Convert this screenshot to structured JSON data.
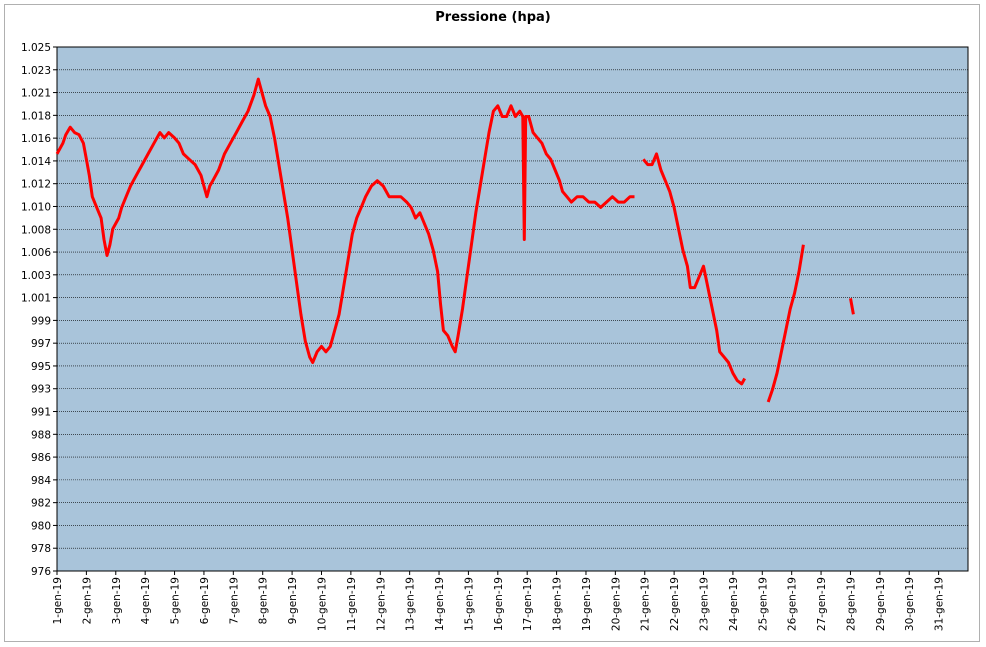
{
  "chart_data": {
    "type": "line",
    "title": "Pressione (hpa)",
    "xlabel": "",
    "ylabel": "",
    "ylim": [
      976,
      1025
    ],
    "xlim_days": [
      1,
      32
    ],
    "y_ticks": [
      "976",
      "978",
      "980",
      "982",
      "984",
      "986",
      "988",
      "991",
      "993",
      "995",
      "997",
      "999",
      "1.001",
      "1.003",
      "1.006",
      "1.008",
      "1.010",
      "1.012",
      "1.014",
      "1.016",
      "1.018",
      "1.021",
      "1.023",
      "1.025"
    ],
    "x_ticks": [
      "1-gen-19",
      "2-gen-19",
      "3-gen-19",
      "4-gen-19",
      "5-gen-19",
      "6-gen-19",
      "7-gen-19",
      "8-gen-19",
      "9-gen-19",
      "10-gen-19",
      "11-gen-19",
      "12-gen-19",
      "13-gen-19",
      "14-gen-19",
      "15-gen-19",
      "16-gen-19",
      "17-gen-19",
      "18-gen-19",
      "19-gen-19",
      "20-gen-19",
      "21-gen-19",
      "22-gen-19",
      "23-gen-19",
      "24-gen-19",
      "25-gen-19",
      "26-gen-19",
      "27-gen-19",
      "28-gen-19",
      "29-gen-19",
      "30-gen-19",
      "31-gen-19"
    ],
    "grid": true,
    "plot_background": "#a9c4da",
    "series": [
      {
        "color": "#ff0000",
        "segments": [
          [
            [
              1.0,
              1015.0
            ],
            [
              1.1,
              1015.5
            ],
            [
              1.2,
              1016.0
            ],
            [
              1.3,
              1016.8
            ],
            [
              1.45,
              1017.5
            ],
            [
              1.6,
              1017.0
            ],
            [
              1.75,
              1016.8
            ],
            [
              1.9,
              1016.0
            ],
            [
              2.0,
              1014.5
            ],
            [
              2.1,
              1013.0
            ],
            [
              2.2,
              1011.0
            ],
            [
              2.35,
              1010.0
            ],
            [
              2.5,
              1009.0
            ],
            [
              2.6,
              1007.0
            ],
            [
              2.7,
              1005.5
            ],
            [
              2.8,
              1006.5
            ],
            [
              2.9,
              1008.0
            ],
            [
              3.0,
              1008.5
            ],
            [
              3.1,
              1009.0
            ],
            [
              3.2,
              1010.0
            ],
            [
              3.35,
              1011.0
            ],
            [
              3.5,
              1012.0
            ],
            [
              3.7,
              1013.0
            ],
            [
              3.9,
              1014.0
            ],
            [
              4.1,
              1015.0
            ],
            [
              4.3,
              1016.0
            ],
            [
              4.5,
              1017.0
            ],
            [
              4.65,
              1016.5
            ],
            [
              4.8,
              1017.0
            ],
            [
              5.0,
              1016.5
            ],
            [
              5.15,
              1016.0
            ],
            [
              5.3,
              1015.0
            ],
            [
              5.5,
              1014.5
            ],
            [
              5.7,
              1014.0
            ],
            [
              5.9,
              1013.0
            ],
            [
              6.0,
              1012.0
            ],
            [
              6.1,
              1011.0
            ],
            [
              6.2,
              1012.0
            ],
            [
              6.3,
              1012.5
            ],
            [
              6.5,
              1013.5
            ],
            [
              6.7,
              1015.0
            ],
            [
              6.9,
              1016.0
            ],
            [
              7.1,
              1017.0
            ],
            [
              7.3,
              1018.0
            ],
            [
              7.5,
              1019.0
            ],
            [
              7.7,
              1020.5
            ],
            [
              7.85,
              1022.0
            ],
            [
              7.95,
              1021.0
            ],
            [
              8.1,
              1019.5
            ],
            [
              8.25,
              1018.5
            ],
            [
              8.4,
              1016.5
            ],
            [
              8.55,
              1014.0
            ],
            [
              8.7,
              1011.5
            ],
            [
              8.85,
              1009.0
            ],
            [
              9.0,
              1006.0
            ],
            [
              9.15,
              1003.0
            ],
            [
              9.3,
              1000.0
            ],
            [
              9.45,
              997.5
            ],
            [
              9.6,
              996.0
            ],
            [
              9.7,
              995.5
            ],
            [
              9.85,
              996.5
            ],
            [
              10.0,
              997.0
            ],
            [
              10.15,
              996.5
            ],
            [
              10.3,
              997.0
            ],
            [
              10.45,
              998.5
            ],
            [
              10.6,
              1000.0
            ],
            [
              10.75,
              1002.5
            ],
            [
              10.9,
              1005.0
            ],
            [
              11.05,
              1007.5
            ],
            [
              11.2,
              1009.0
            ],
            [
              11.35,
              1010.0
            ],
            [
              11.5,
              1011.0
            ],
            [
              11.7,
              1012.0
            ],
            [
              11.9,
              1012.5
            ],
            [
              12.1,
              1012.0
            ],
            [
              12.3,
              1011.0
            ],
            [
              12.5,
              1011.0
            ],
            [
              12.7,
              1011.0
            ],
            [
              12.9,
              1010.5
            ],
            [
              13.05,
              1010.0
            ],
            [
              13.2,
              1009.0
            ],
            [
              13.35,
              1009.5
            ],
            [
              13.5,
              1008.5
            ],
            [
              13.65,
              1007.5
            ],
            [
              13.8,
              1006.0
            ],
            [
              13.95,
              1004.0
            ],
            [
              14.05,
              1001.0
            ],
            [
              14.15,
              998.5
            ],
            [
              14.3,
              998.0
            ],
            [
              14.45,
              997.0
            ],
            [
              14.55,
              996.5
            ],
            [
              14.65,
              998.0
            ],
            [
              14.8,
              1000.5
            ],
            [
              14.95,
              1003.5
            ],
            [
              15.1,
              1006.5
            ],
            [
              15.25,
              1009.5
            ],
            [
              15.4,
              1012.0
            ],
            [
              15.55,
              1014.5
            ],
            [
              15.7,
              1017.0
            ],
            [
              15.85,
              1019.0
            ],
            [
              16.0,
              1019.5
            ],
            [
              16.15,
              1018.5
            ],
            [
              16.3,
              1018.5
            ],
            [
              16.45,
              1019.5
            ],
            [
              16.6,
              1018.5
            ],
            [
              16.75,
              1019.0
            ],
            [
              16.85,
              1018.5
            ],
            [
              16.9,
              1007.0
            ],
            [
              16.95,
              1018.5
            ],
            [
              17.05,
              1018.5
            ],
            [
              17.2,
              1017.0
            ],
            [
              17.35,
              1016.5
            ],
            [
              17.5,
              1016.0
            ],
            [
              17.65,
              1015.0
            ],
            [
              17.8,
              1014.5
            ],
            [
              17.95,
              1013.5
            ],
            [
              18.1,
              1012.5
            ],
            [
              18.2,
              1011.5
            ],
            [
              18.35,
              1011.0
            ],
            [
              18.5,
              1010.5
            ],
            [
              18.7,
              1011.0
            ],
            [
              18.9,
              1011.0
            ],
            [
              19.1,
              1010.5
            ],
            [
              19.3,
              1010.5
            ],
            [
              19.5,
              1010.0
            ],
            [
              19.7,
              1010.5
            ],
            [
              19.9,
              1011.0
            ],
            [
              20.1,
              1010.5
            ],
            [
              20.3,
              1010.5
            ],
            [
              20.5,
              1011.0
            ],
            [
              20.65,
              1011.0
            ]
          ],
          [
            [
              20.95,
              1014.5
            ],
            [
              21.1,
              1014.0
            ],
            [
              21.25,
              1014.0
            ],
            [
              21.4,
              1015.0
            ],
            [
              21.55,
              1013.5
            ],
            [
              21.7,
              1012.5
            ],
            [
              21.85,
              1011.5
            ],
            [
              22.0,
              1010.0
            ],
            [
              22.15,
              1008.0
            ],
            [
              22.3,
              1006.0
            ],
            [
              22.45,
              1004.5
            ],
            [
              22.55,
              1002.5
            ],
            [
              22.7,
              1002.5
            ],
            [
              22.85,
              1003.5
            ],
            [
              23.0,
              1004.5
            ],
            [
              23.15,
              1002.5
            ],
            [
              23.3,
              1000.5
            ],
            [
              23.45,
              998.5
            ],
            [
              23.55,
              996.5
            ],
            [
              23.7,
              996.0
            ],
            [
              23.85,
              995.5
            ],
            [
              24.0,
              994.5
            ],
            [
              24.15,
              993.8
            ],
            [
              24.3,
              993.5
            ],
            [
              24.4,
              994.0
            ]
          ],
          [
            [
              25.2,
              991.8
            ],
            [
              25.35,
              993.0
            ],
            [
              25.5,
              994.5
            ],
            [
              25.65,
              996.5
            ],
            [
              25.8,
              998.5
            ],
            [
              25.95,
              1000.5
            ],
            [
              26.1,
              1002.0
            ],
            [
              26.25,
              1004.0
            ],
            [
              26.4,
              1006.5
            ]
          ],
          [
            [
              28.0,
              1001.5
            ],
            [
              28.1,
              1000.0
            ]
          ]
        ]
      }
    ]
  }
}
